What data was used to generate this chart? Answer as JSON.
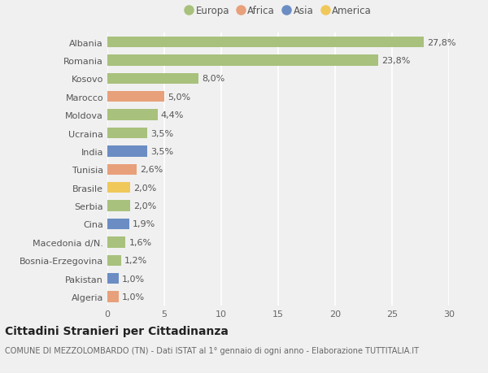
{
  "countries": [
    "Albania",
    "Romania",
    "Kosovo",
    "Marocco",
    "Moldova",
    "Ucraina",
    "India",
    "Tunisia",
    "Brasile",
    "Serbia",
    "Cina",
    "Macedonia d/N.",
    "Bosnia-Erzegovina",
    "Pakistan",
    "Algeria"
  ],
  "values": [
    27.8,
    23.8,
    8.0,
    5.0,
    4.4,
    3.5,
    3.5,
    2.6,
    2.0,
    2.0,
    1.9,
    1.6,
    1.2,
    1.0,
    1.0
  ],
  "labels": [
    "27,8%",
    "23,8%",
    "8,0%",
    "5,0%",
    "4,4%",
    "3,5%",
    "3,5%",
    "2,6%",
    "2,0%",
    "2,0%",
    "1,9%",
    "1,6%",
    "1,2%",
    "1,0%",
    "1,0%"
  ],
  "continents": [
    "Europa",
    "Europa",
    "Europa",
    "Africa",
    "Europa",
    "Europa",
    "Asia",
    "Africa",
    "America",
    "Europa",
    "Asia",
    "Europa",
    "Europa",
    "Asia",
    "Africa"
  ],
  "continent_colors": {
    "Europa": "#a8c17c",
    "Africa": "#e8a07a",
    "Asia": "#6b8dc4",
    "America": "#f0c85a"
  },
  "legend_order": [
    "Europa",
    "Africa",
    "Asia",
    "America"
  ],
  "xlim": [
    0,
    30
  ],
  "xticks": [
    0,
    5,
    10,
    15,
    20,
    25,
    30
  ],
  "title": "Cittadini Stranieri per Cittadinanza",
  "subtitle": "COMUNE DI MEZZOLOMBARDO (TN) - Dati ISTAT al 1° gennaio di ogni anno - Elaborazione TUTTITALIA.IT",
  "bg_color": "#f0f0f0",
  "grid_color": "#ffffff",
  "bar_height": 0.6,
  "title_fontsize": 10,
  "subtitle_fontsize": 7,
  "tick_fontsize": 8,
  "label_fontsize": 8,
  "legend_fontsize": 8.5
}
